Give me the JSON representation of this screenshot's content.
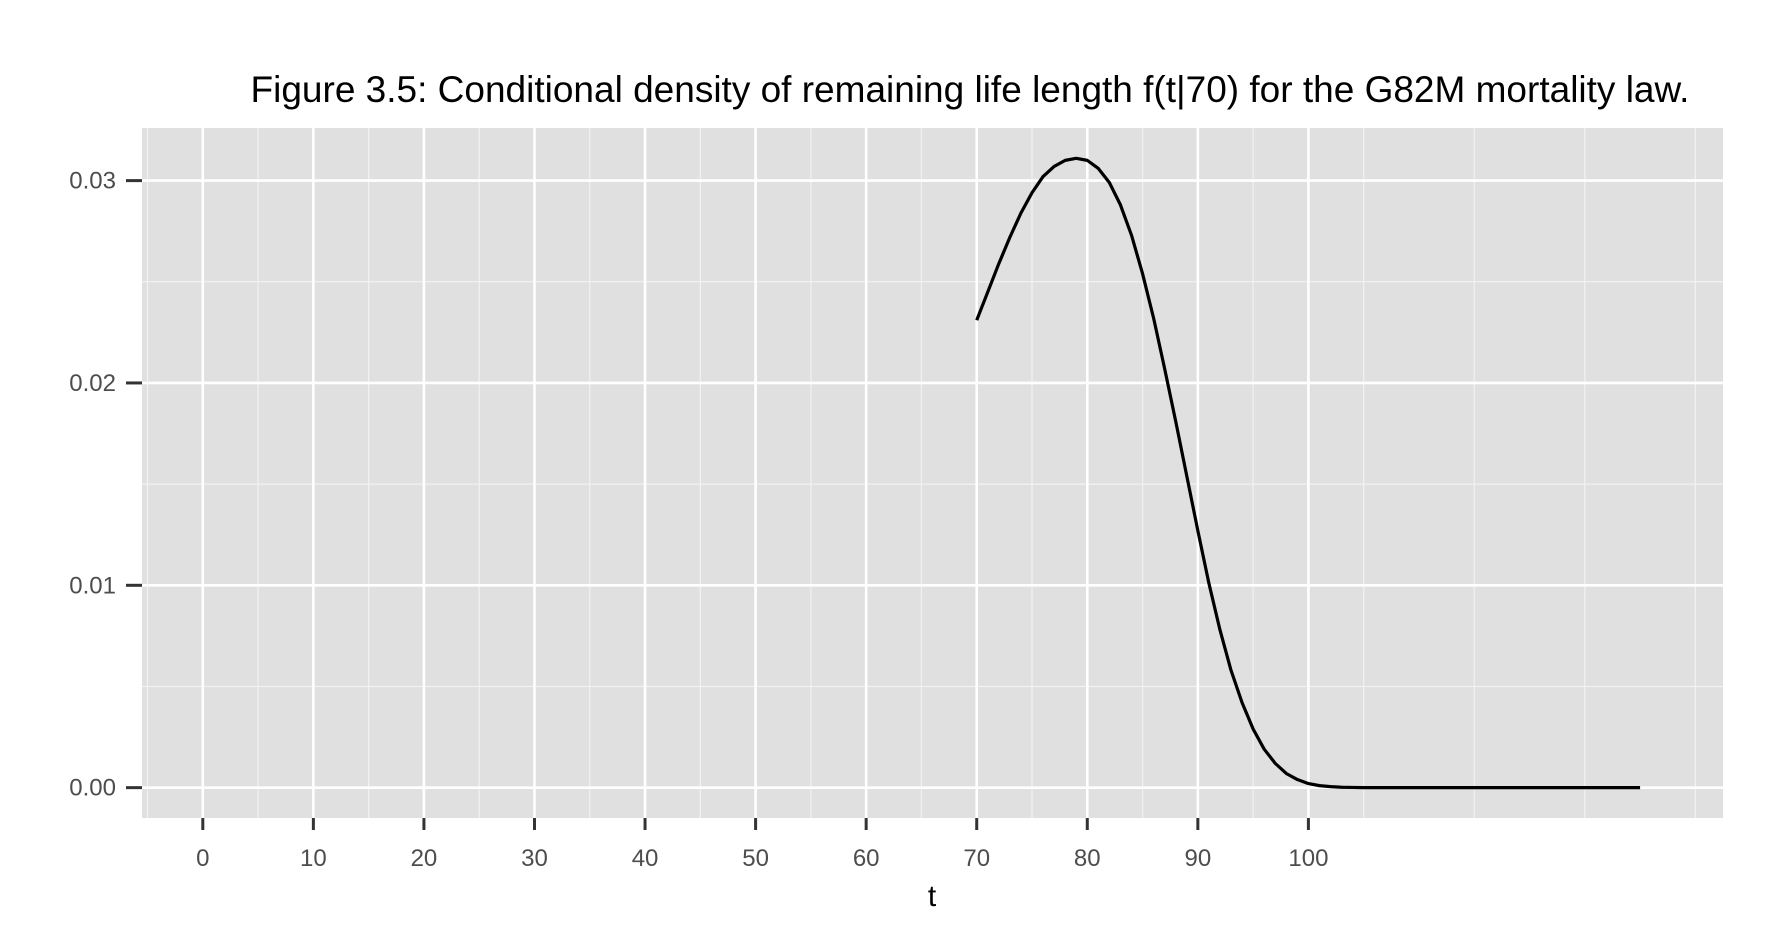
{
  "chart_data": {
    "type": "line",
    "title": "Figure 3.5: Conditional density of remaining life length f(t|70) for the G82M mortality law.",
    "xlabel": "t",
    "ylabel": "",
    "xlim": [
      -5.5,
      137.5
    ],
    "ylim": [
      -0.0015,
      0.0326
    ],
    "x_ticks": [
      0,
      10,
      20,
      30,
      40,
      50,
      60,
      70,
      80,
      90,
      100
    ],
    "x_tick_labels": [
      "0",
      "10",
      "20",
      "30",
      "40",
      "50",
      "60",
      "70",
      "80",
      "90",
      "100"
    ],
    "y_ticks": [
      0,
      0.01,
      0.02,
      0.03
    ],
    "y_tick_labels": [
      "0.00",
      "0.01",
      "0.02",
      "0.03"
    ],
    "grid": true,
    "legend": "none",
    "colors": {
      "panel_background": "#e0e0e0",
      "grid_major": "#ffffff",
      "line": "#000000",
      "tick_text": "#4d4d4d"
    },
    "series": [
      {
        "x": [
          70,
          71,
          72,
          73,
          74,
          75,
          76,
          77,
          78,
          79,
          80,
          81,
          82,
          83,
          84,
          85,
          86,
          87,
          88,
          89,
          90,
          91,
          92,
          93,
          94,
          95,
          96,
          97,
          98,
          99,
          100,
          101,
          102,
          103,
          104,
          105,
          106,
          107,
          108,
          109,
          110,
          112,
          115,
          120,
          125,
          130
        ],
        "y": [
          0.0231,
          0.0245,
          0.0259,
          0.0272,
          0.0284,
          0.0294,
          0.0302,
          0.0307,
          0.031,
          0.0311,
          0.031,
          0.0306,
          0.0299,
          0.0288,
          0.0273,
          0.0254,
          0.0232,
          0.0207,
          0.0181,
          0.0154,
          0.0127,
          0.0101,
          0.0078,
          0.0058,
          0.0042,
          0.0029,
          0.0019,
          0.0012,
          0.0007,
          0.0004,
          0.0002,
          0.0001,
          5e-05,
          2e-05,
          1e-05,
          0.0,
          0.0,
          0.0,
          0.0,
          0.0,
          0.0,
          0.0,
          0.0,
          0.0,
          0.0,
          0.0
        ]
      }
    ]
  }
}
